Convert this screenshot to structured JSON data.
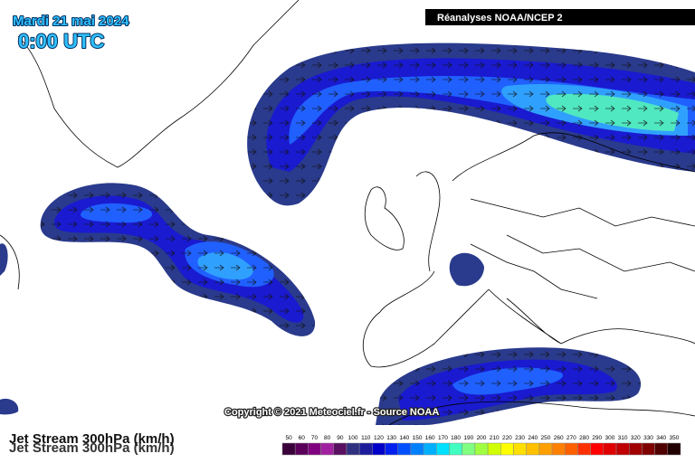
{
  "header": {
    "date": "Mardi 21 mai 2024",
    "time": "0:00 UTC",
    "source": "Réanalyses NOAA/NCEP 2"
  },
  "footer": {
    "copyright": "Copyright © 2021 Meteociel.fr - Source NOAA",
    "title": "Jet Stream 300hPa (km/h)"
  },
  "legend": {
    "items": [
      {
        "label": 50,
        "color": "#3a003a"
      },
      {
        "label": 60,
        "color": "#5a005a"
      },
      {
        "label": 70,
        "color": "#800080"
      },
      {
        "label": 80,
        "color": "#a020a0"
      },
      {
        "label": 90,
        "color": "#5a1060"
      },
      {
        "label": 100,
        "color": "#303080"
      },
      {
        "label": 110,
        "color": "#1c1c9c"
      },
      {
        "label": 120,
        "color": "#0000c8"
      },
      {
        "label": 130,
        "color": "#0020f0"
      },
      {
        "label": 140,
        "color": "#0050ff"
      },
      {
        "label": 150,
        "color": "#0080ff"
      },
      {
        "label": 160,
        "color": "#00b0ff"
      },
      {
        "label": 170,
        "color": "#00e0ff"
      },
      {
        "label": 180,
        "color": "#40ffc0"
      },
      {
        "label": 190,
        "color": "#80ff80"
      },
      {
        "label": 200,
        "color": "#a0ff40"
      },
      {
        "label": 210,
        "color": "#d0ff00"
      },
      {
        "label": 220,
        "color": "#ffff00"
      },
      {
        "label": 230,
        "color": "#ffe000"
      },
      {
        "label": 240,
        "color": "#ffc000"
      },
      {
        "label": 250,
        "color": "#ffa000"
      },
      {
        "label": 260,
        "color": "#ff8000"
      },
      {
        "label": 270,
        "color": "#ff6000"
      },
      {
        "label": 280,
        "color": "#ff3000"
      },
      {
        "label": 290,
        "color": "#ff0000"
      },
      {
        "label": 300,
        "color": "#e00000"
      },
      {
        "label": 310,
        "color": "#c00000"
      },
      {
        "label": 320,
        "color": "#a00000"
      },
      {
        "label": 330,
        "color": "#800000"
      },
      {
        "label": 340,
        "color": "#500000"
      },
      {
        "label": 350,
        "color": "#200000"
      }
    ]
  }
}
